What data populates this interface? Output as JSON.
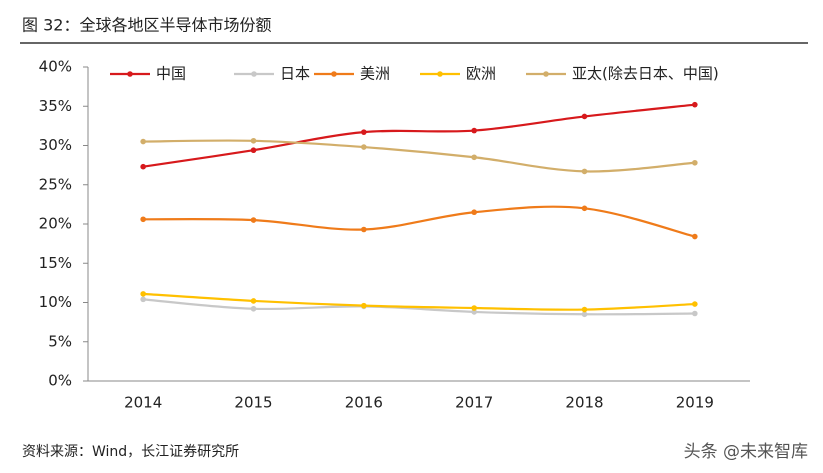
{
  "chart_data": {
    "type": "line",
    "title": "图 32：全球各地区半导体市场份额",
    "source": "资料来源：Wind，长江证券研究所",
    "watermark": "头条 @未来智库",
    "categories": [
      "2014",
      "2015",
      "2016",
      "2017",
      "2018",
      "2019"
    ],
    "series": [
      {
        "name": "中国",
        "color": "#d7191c",
        "values": [
          27.3,
          29.4,
          31.7,
          31.9,
          33.7,
          35.2
        ]
      },
      {
        "name": "日本",
        "color": "#c8c8c8",
        "values": [
          10.4,
          9.2,
          9.5,
          8.8,
          8.5,
          8.6
        ]
      },
      {
        "name": "美洲",
        "color": "#ef7b1a",
        "values": [
          20.6,
          20.5,
          19.3,
          21.5,
          22.0,
          18.4
        ]
      },
      {
        "name": "欧洲",
        "color": "#ffc000",
        "values": [
          11.1,
          10.2,
          9.6,
          9.3,
          9.1,
          9.8
        ]
      },
      {
        "name": "亚太(除去日本、中国)",
        "color": "#d2ae6a",
        "values": [
          30.5,
          30.6,
          29.8,
          28.5,
          26.7,
          27.8
        ]
      }
    ],
    "ylim": [
      0,
      40
    ],
    "yticks": [
      {
        "value": 0,
        "label": "0%"
      },
      {
        "value": 5,
        "label": "5%"
      },
      {
        "value": 10,
        "label": "10%"
      },
      {
        "value": 15,
        "label": "15%"
      },
      {
        "value": 20,
        "label": "20%"
      },
      {
        "value": 25,
        "label": "25%"
      },
      {
        "value": 30,
        "label": "30%"
      },
      {
        "value": 35,
        "label": "35%"
      },
      {
        "value": 40,
        "label": "40%"
      }
    ],
    "smooth": true
  }
}
